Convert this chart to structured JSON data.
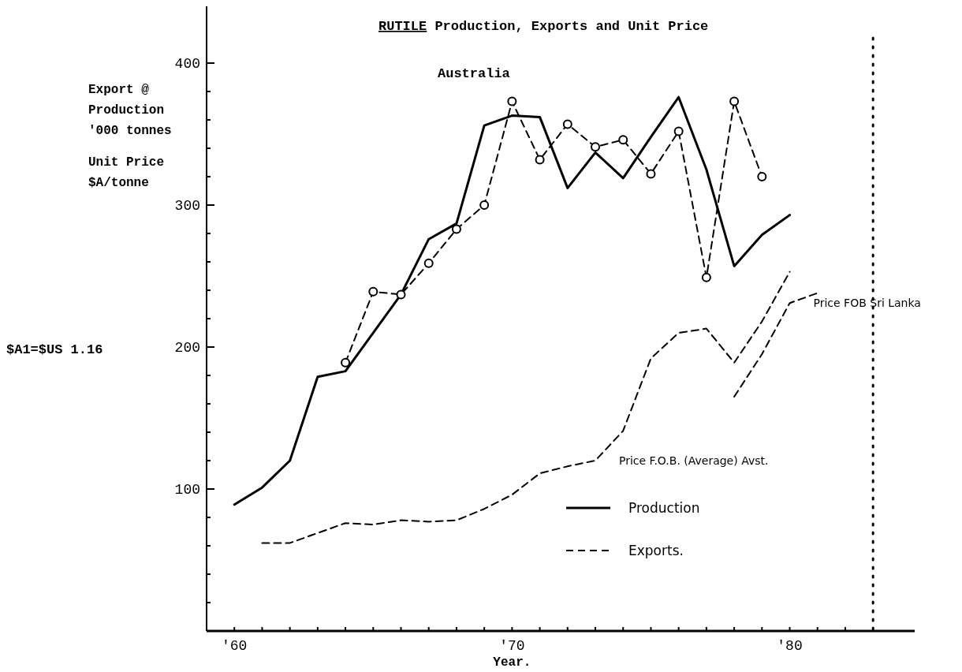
{
  "chart_data": {
    "type": "line",
    "title": "RUTILE  Production, Exports and Unit Price",
    "subtitle": "Australia",
    "xlabel": "Year.",
    "ylabel": "Export @\nProduction\n'000 tonnes\nUnit Price\n$A/tonne",
    "annotations": [
      "$A1=$US 1.16"
    ],
    "xlim": [
      1959,
      1984.5
    ],
    "ylim": [
      0,
      440
    ],
    "xticks": [
      {
        "value": 1960,
        "label": "'60"
      },
      {
        "value": 1961,
        "label": null
      },
      {
        "value": 1962,
        "label": null
      },
      {
        "value": 1963,
        "label": null
      },
      {
        "value": 1964,
        "label": null
      },
      {
        "value": 1965,
        "label": null
      },
      {
        "value": 1966,
        "label": null
      },
      {
        "value": 1967,
        "label": null
      },
      {
        "value": 1968,
        "label": null
      },
      {
        "value": 1969,
        "label": null
      },
      {
        "value": 1970,
        "label": "'70"
      },
      {
        "value": 1971,
        "label": null
      },
      {
        "value": 1972,
        "label": null
      },
      {
        "value": 1973,
        "label": null
      },
      {
        "value": 1974,
        "label": null
      },
      {
        "value": 1975,
        "label": null
      },
      {
        "value": 1976,
        "label": null
      },
      {
        "value": 1977,
        "label": null
      },
      {
        "value": 1978,
        "label": null
      },
      {
        "value": 1979,
        "label": null
      },
      {
        "value": 1980,
        "label": "'80"
      },
      {
        "value": 1981,
        "label": null
      },
      {
        "value": 1982,
        "label": null
      },
      {
        "value": 1983,
        "label": null
      }
    ],
    "yticks": [
      {
        "value": 20,
        "label": null
      },
      {
        "value": 40,
        "label": null
      },
      {
        "value": 60,
        "label": null
      },
      {
        "value": 80,
        "label": null
      },
      100,
      {
        "value": 120,
        "label": null
      },
      {
        "value": 140,
        "label": null
      },
      {
        "value": 160,
        "label": null
      },
      {
        "value": 180,
        "label": null
      },
      200,
      {
        "value": 220,
        "label": null
      },
      {
        "value": 240,
        "label": null
      },
      {
        "value": 260,
        "label": null
      },
      {
        "value": 280,
        "label": null
      },
      300,
      {
        "value": 320,
        "label": null
      },
      {
        "value": 340,
        "label": null
      },
      {
        "value": 360,
        "label": null
      },
      {
        "value": 380,
        "label": null
      },
      400
    ],
    "legend": "bottom",
    "grid": false,
    "ref_lines": [
      {
        "axis": "x",
        "value": 1983,
        "label": null,
        "color": "#000000",
        "line_style": "dotted"
      }
    ],
    "series": [
      {
        "name": "Production",
        "color": "#000000",
        "line_style": "solid",
        "marker": "none",
        "x": [
          1960,
          1961,
          1962,
          1963,
          1964,
          1966,
          1967,
          1968,
          1969,
          1970,
          1971,
          1972,
          1973,
          1974,
          1975,
          1976,
          1977,
          1978,
          1979,
          1980
        ],
        "values": [
          89,
          101,
          120,
          179,
          183,
          237,
          276,
          287,
          356,
          363,
          362,
          312,
          337,
          319,
          348,
          376,
          325,
          257,
          279,
          293
        ]
      },
      {
        "name": "Exports.",
        "color": "#000000",
        "line_style": "dashed",
        "marker": "circle",
        "x": [
          1964,
          1965,
          1966,
          1967,
          1968,
          1969,
          1970,
          1971,
          1972,
          1973,
          1974,
          1975,
          1976,
          1977,
          1978,
          1979
        ],
        "values": [
          189,
          239,
          237,
          259,
          283,
          300,
          373,
          332,
          357,
          341,
          346,
          322,
          352,
          249,
          373,
          320
        ]
      },
      {
        "name": "Price F.O.B. (Average) Avst.",
        "color": "#000000",
        "line_style": "dashed",
        "marker": "none",
        "x": [
          1961,
          1962,
          1963,
          1964,
          1965,
          1966,
          1967,
          1968,
          1969,
          1970,
          1971,
          1972,
          1973,
          1974,
          1975,
          1976,
          1977,
          1978,
          1979,
          1980
        ],
        "values": [
          62,
          62,
          69,
          76,
          75,
          78,
          77,
          78,
          86,
          96,
          111,
          116,
          120,
          141,
          192,
          210,
          213,
          189,
          218,
          253
        ]
      },
      {
        "name": "Price FOB Sri Lanka",
        "color": "#000000",
        "line_style": "dashed",
        "marker": "none",
        "x": [
          1978,
          1979,
          1980,
          1981
        ],
        "values": [
          165,
          195,
          231,
          238
        ]
      }
    ]
  }
}
